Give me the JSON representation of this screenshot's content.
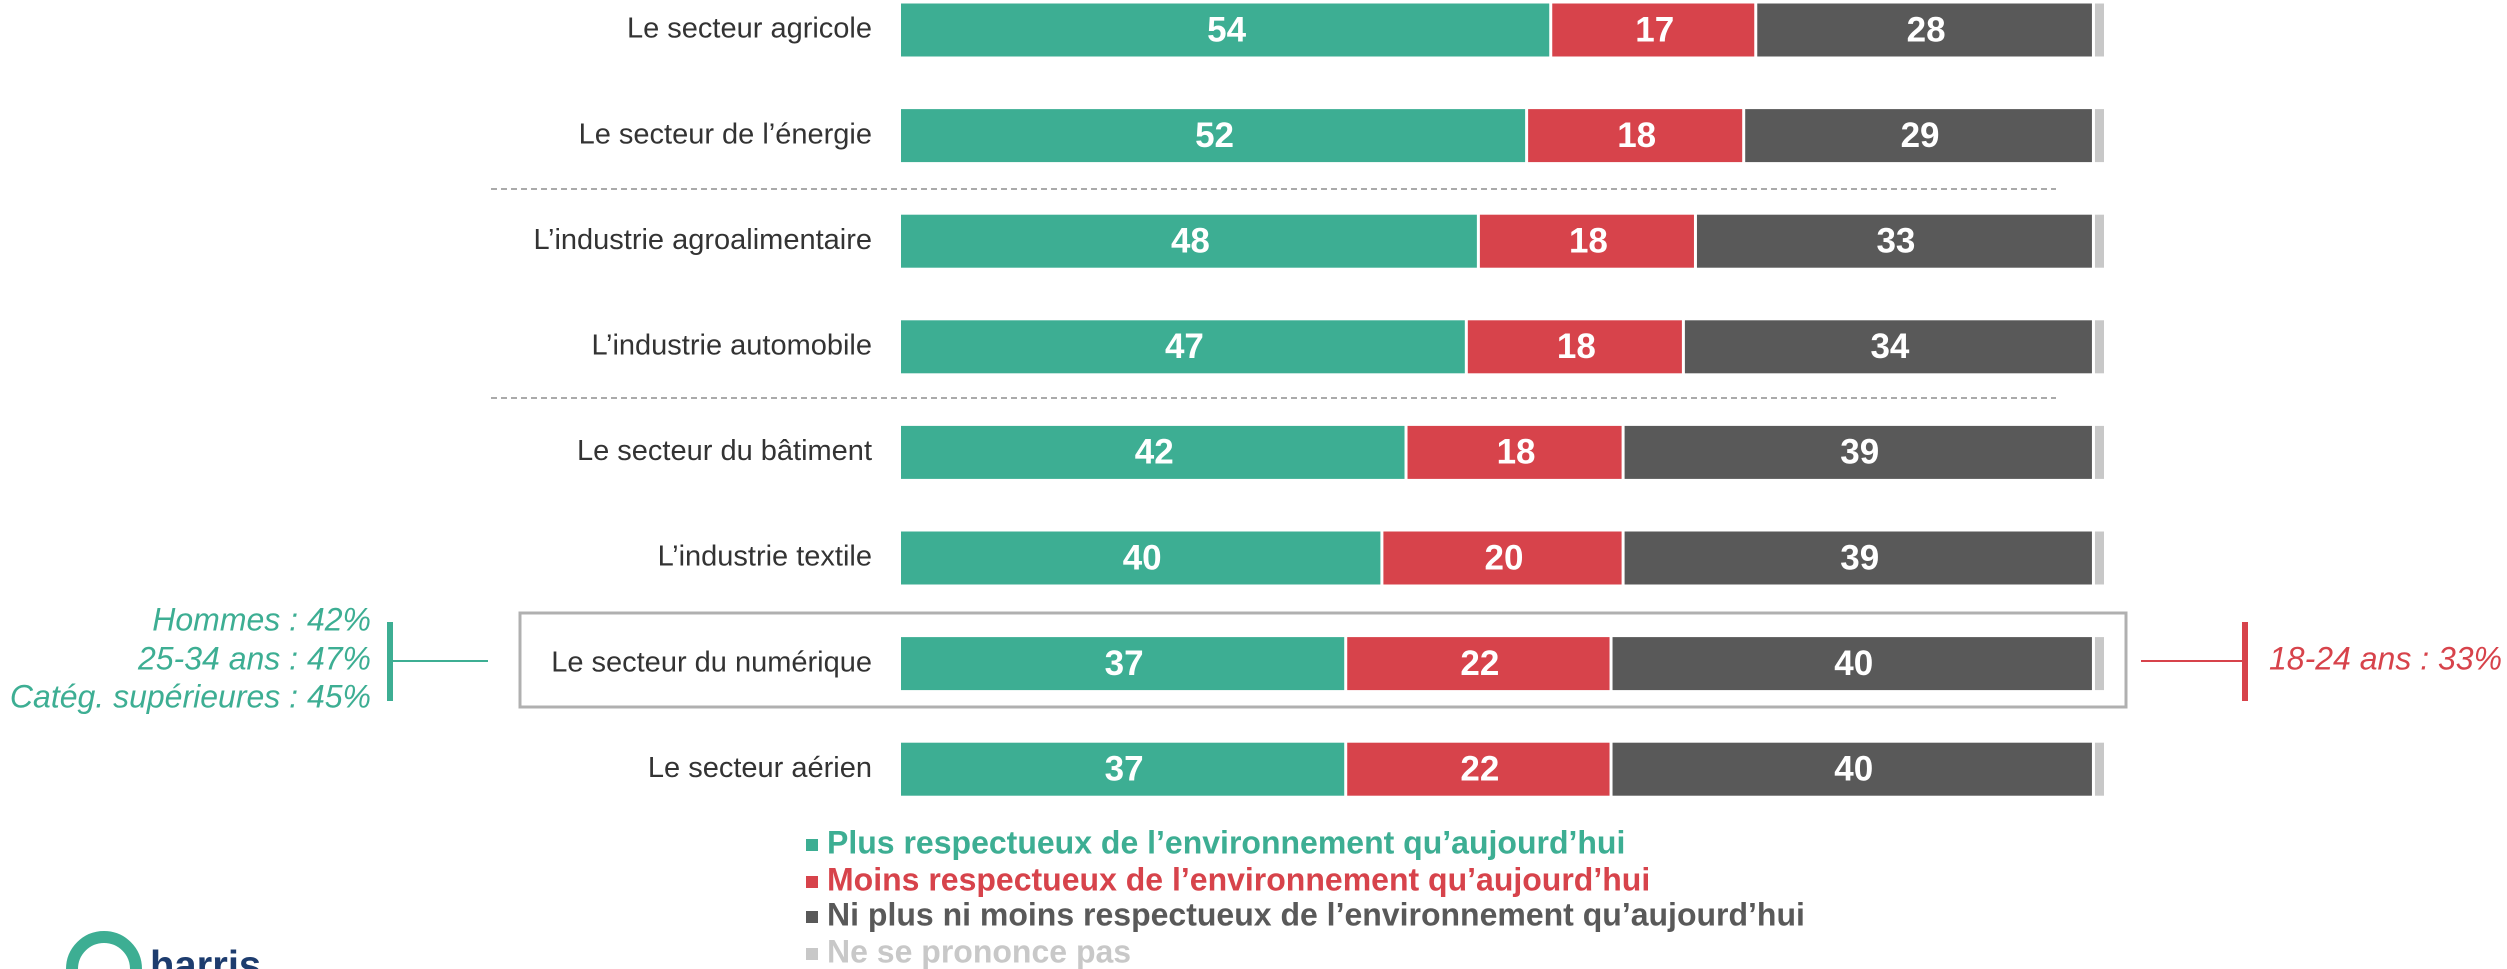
{
  "chart_data": {
    "type": "stacked-bar-horizontal",
    "categories": [
      "Le secteur agricole",
      "Le secteur de l’énergie",
      "L’industrie agroalimentaire",
      "L’industrie automobile",
      "Le secteur du bâtiment",
      "L’industrie textile",
      "Le secteur du numérique",
      "Le secteur aérien"
    ],
    "series": [
      {
        "name": "Plus respectueux de l’environnement qu’aujourd’hui",
        "color": "#3dae93",
        "values": [
          54,
          52,
          48,
          47,
          42,
          40,
          37,
          37
        ],
        "show_value_labels": true
      },
      {
        "name": "Moins respectueux de l’environnement qu’aujourd’hui",
        "color": "#d7434b",
        "values": [
          17,
          18,
          18,
          18,
          18,
          20,
          22,
          22
        ],
        "show_value_labels": true
      },
      {
        "name": "Ni plus ni moins respectueux de l’environnement qu’aujourd’hui",
        "color": "#595959",
        "values": [
          28,
          29,
          33,
          34,
          39,
          39,
          40,
          40
        ],
        "show_value_labels": true
      },
      {
        "name": "Ne se prononce pas",
        "color": "#c8c8c8",
        "values": [
          1,
          1,
          1,
          1,
          1,
          1,
          1,
          1
        ],
        "show_value_labels": false
      }
    ],
    "xlim": [
      0,
      100
    ],
    "annotations": {
      "left": [
        "Hommes : 42%",
        "25-34 ans : 47%",
        "Catég. supérieures : 45%"
      ],
      "right": [
        "18-24 ans : 33%"
      ]
    },
    "logo": "harris"
  }
}
